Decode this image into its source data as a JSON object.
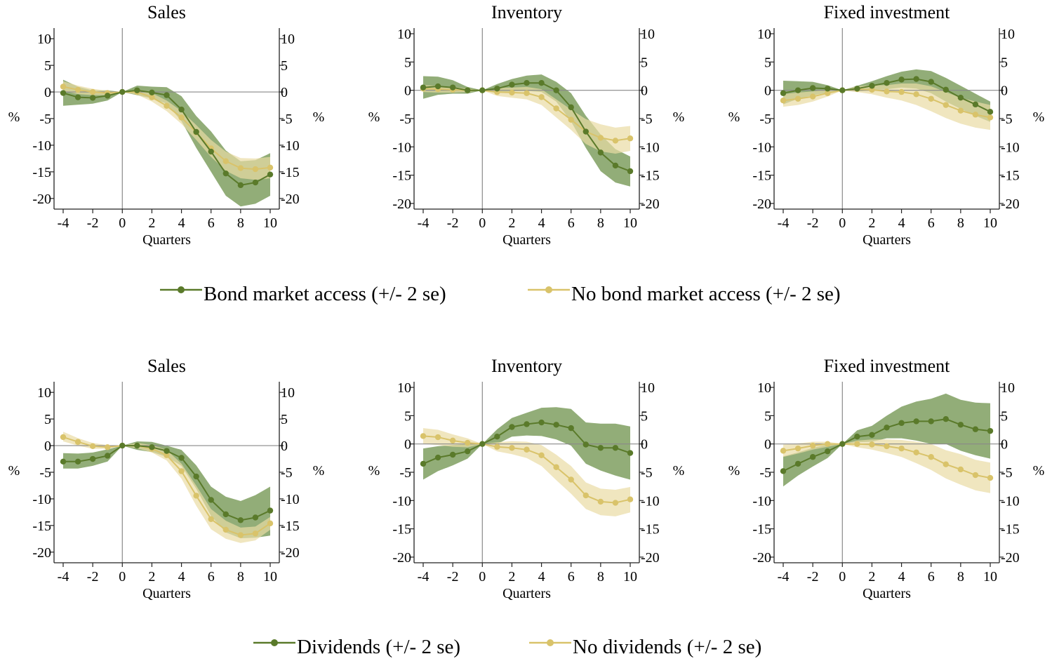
{
  "figure": {
    "background": "#ffffff",
    "colors": {
      "green": "#5a7a2a",
      "green_band": "#7f9f60",
      "yellow": "#d9c36a",
      "yellow_band": "#e9dca4",
      "axis": "#222222",
      "zero_line": "#888888"
    }
  },
  "legends": [
    {
      "items": [
        "Bond market access (+/- 2 se)",
        "No bond market access (+/- 2 se)"
      ]
    },
    {
      "items": [
        "Dividends (+/- 2 se)",
        "No dividends (+/- 2 se)"
      ]
    }
  ],
  "chart_data": [
    {
      "type": "line",
      "title": "Sales",
      "xlabel": "Quarters",
      "ylabel": "%",
      "ylabel_right": "%",
      "xlim": [
        -4,
        10
      ],
      "ylim": [
        -22,
        12
      ],
      "xticks": [
        -4,
        -2,
        0,
        2,
        4,
        6,
        8,
        10
      ],
      "yticks": [
        10,
        5,
        0,
        -5,
        -10,
        -15,
        -20
      ],
      "x": [
        -4,
        -3,
        -2,
        -1,
        0,
        1,
        2,
        3,
        4,
        5,
        6,
        7,
        8,
        9,
        10
      ],
      "series": [
        {
          "name": "Bond market access (+/- 2 se)",
          "color": "#5a7a2a",
          "band_color": "#7f9f60",
          "values": [
            -0.2,
            -1.0,
            -1.1,
            -0.7,
            0,
            0.3,
            -0.1,
            -0.6,
            -3.3,
            -7.5,
            -11.2,
            -15.3,
            -17.5,
            -17.0,
            -15.5
          ],
          "lower": [
            -2.6,
            -2.4,
            -2.2,
            -1.6,
            0,
            -0.6,
            -1.2,
            -2.2,
            -5.5,
            -10.5,
            -15.0,
            -19.5,
            -21.5,
            -21.0,
            -19.5
          ],
          "upper": [
            2.3,
            1.0,
            0.3,
            0.3,
            0,
            1.2,
            1.0,
            0.9,
            -0.8,
            -4.5,
            -7.4,
            -11.0,
            -13.0,
            -12.8,
            -11.5
          ]
        },
        {
          "name": "No bond market access (+/- 2 se)",
          "color": "#d9c36a",
          "band_color": "#e9dca4",
          "values": [
            1.0,
            0.4,
            0.0,
            -0.2,
            0,
            0.0,
            -1.0,
            -2.6,
            -4.8,
            -7.6,
            -10.6,
            -13.0,
            -14.3,
            -14.5,
            -14.2
          ],
          "lower": [
            0.2,
            -0.4,
            -0.6,
            -0.6,
            0,
            -0.5,
            -1.8,
            -3.6,
            -6.0,
            -9.0,
            -12.2,
            -14.8,
            -16.2,
            -16.5,
            -16.2
          ],
          "upper": [
            2.0,
            1.2,
            0.6,
            0.2,
            0,
            0.5,
            -0.2,
            -1.6,
            -3.6,
            -6.2,
            -9.0,
            -11.2,
            -12.4,
            -12.5,
            -12.2
          ]
        }
      ]
    },
    {
      "type": "line",
      "title": "Inventory",
      "xlabel": "Quarters",
      "ylabel": "%",
      "ylabel_right": "%",
      "xlim": [
        -4,
        10
      ],
      "ylim": [
        -21,
        11
      ],
      "xticks": [
        -4,
        -2,
        0,
        2,
        4,
        6,
        8,
        10
      ],
      "yticks": [
        10,
        5,
        0,
        -5,
        -10,
        -15,
        -20
      ],
      "x": [
        -4,
        -3,
        -2,
        -1,
        0,
        1,
        2,
        3,
        4,
        5,
        6,
        7,
        8,
        9,
        10
      ],
      "series": [
        {
          "name": "Bond market access (+/- 2 se)",
          "color": "#5a7a2a",
          "band_color": "#7f9f60",
          "values": [
            0.5,
            0.7,
            0.5,
            0.0,
            0,
            0.3,
            1.0,
            1.3,
            1.3,
            0.0,
            -3.0,
            -7.3,
            -11.0,
            -13.3,
            -14.3
          ],
          "lower": [
            -1.5,
            -0.8,
            -0.6,
            -0.6,
            0,
            -0.5,
            -0.2,
            -0.1,
            -0.3,
            -2.0,
            -5.5,
            -10.2,
            -14.3,
            -16.3,
            -17.0
          ],
          "upper": [
            2.5,
            2.4,
            1.8,
            0.6,
            0,
            1.1,
            2.0,
            2.6,
            2.8,
            1.5,
            -0.5,
            -4.5,
            -7.8,
            -10.4,
            -11.7
          ]
        },
        {
          "name": "No bond market access (+/- 2 se)",
          "color": "#d9c36a",
          "band_color": "#e9dca4",
          "values": [
            0.3,
            0.2,
            0.1,
            0.0,
            0,
            -0.3,
            -0.4,
            -0.5,
            -1.2,
            -3.2,
            -5.2,
            -7.3,
            -8.4,
            -8.9,
            -8.5
          ],
          "lower": [
            -0.3,
            -0.4,
            -0.4,
            -0.3,
            0,
            -1.0,
            -1.3,
            -1.6,
            -2.6,
            -4.8,
            -7.0,
            -9.5,
            -10.8,
            -11.2,
            -10.7
          ],
          "upper": [
            0.9,
            0.8,
            0.6,
            0.3,
            0,
            0.4,
            0.5,
            0.6,
            0.2,
            -1.6,
            -3.4,
            -5.1,
            -6.0,
            -6.6,
            -6.3
          ]
        }
      ]
    },
    {
      "type": "line",
      "title": "Fixed investment",
      "xlabel": "Quarters",
      "ylabel": "%",
      "ylabel_right": "%",
      "xlim": [
        -4,
        10
      ],
      "ylim": [
        -21,
        11
      ],
      "xticks": [
        -4,
        -2,
        0,
        2,
        4,
        6,
        8,
        10
      ],
      "yticks": [
        10,
        5,
        0,
        -5,
        -10,
        -15,
        -20
      ],
      "x": [
        -4,
        -3,
        -2,
        -1,
        0,
        1,
        2,
        3,
        4,
        5,
        6,
        7,
        8,
        9,
        10
      ],
      "series": [
        {
          "name": "Bond market access (+/- 2 se)",
          "color": "#5a7a2a",
          "band_color": "#7f9f60",
          "values": [
            -0.5,
            0.0,
            0.4,
            0.3,
            0,
            0.3,
            0.8,
            1.3,
            1.9,
            2.0,
            1.5,
            0.1,
            -1.3,
            -2.5,
            -3.8
          ],
          "lower": [
            -2.5,
            -1.5,
            -0.9,
            -0.4,
            0,
            -0.2,
            0.0,
            0.2,
            0.5,
            0.3,
            -0.5,
            -2.0,
            -3.3,
            -4.5,
            -5.6
          ],
          "upper": [
            1.7,
            1.6,
            1.5,
            0.9,
            0,
            0.8,
            1.6,
            2.5,
            3.3,
            3.7,
            3.4,
            2.2,
            0.8,
            -0.6,
            -2.0
          ]
        },
        {
          "name": "No bond market access (+/- 2 se)",
          "color": "#d9c36a",
          "band_color": "#e9dca4",
          "values": [
            -1.8,
            -1.5,
            -1.1,
            -0.5,
            0,
            0.2,
            0.1,
            -0.2,
            -0.3,
            -0.7,
            -1.5,
            -2.6,
            -3.6,
            -4.3,
            -4.8
          ],
          "lower": [
            -2.9,
            -2.6,
            -2.0,
            -1.1,
            0,
            -0.3,
            -0.7,
            -1.3,
            -1.8,
            -2.6,
            -3.7,
            -4.9,
            -5.9,
            -6.6,
            -7.0
          ],
          "upper": [
            -0.7,
            -0.4,
            -0.2,
            0.1,
            0,
            0.7,
            0.9,
            0.9,
            1.2,
            1.2,
            0.7,
            -0.3,
            -1.3,
            -2.0,
            -2.6
          ]
        }
      ]
    },
    {
      "type": "line",
      "title": "Sales",
      "xlabel": "Quarters",
      "ylabel": "%",
      "ylabel_right": "%",
      "xlim": [
        -4,
        10
      ],
      "ylim": [
        -22,
        12
      ],
      "xticks": [
        -4,
        -2,
        0,
        2,
        4,
        6,
        8,
        10
      ],
      "yticks": [
        10,
        5,
        0,
        -5,
        -10,
        -15,
        -20
      ],
      "x": [
        -4,
        -3,
        -2,
        -1,
        0,
        1,
        2,
        3,
        4,
        5,
        6,
        7,
        8,
        9,
        10
      ],
      "series": [
        {
          "name": "Dividends (+/- 2 se)",
          "color": "#5a7a2a",
          "band_color": "#7f9f60",
          "values": [
            -3.0,
            -3.0,
            -2.5,
            -1.9,
            0,
            0.0,
            -0.3,
            -1.0,
            -2.3,
            -5.8,
            -10.2,
            -12.9,
            -14.0,
            -13.5,
            -12.2
          ],
          "lower": [
            -4.3,
            -4.3,
            -3.8,
            -3.0,
            0,
            -0.8,
            -1.2,
            -2.1,
            -3.8,
            -8.1,
            -13.2,
            -16.3,
            -17.4,
            -17.3,
            -16.9
          ],
          "upper": [
            -1.4,
            -1.5,
            -1.3,
            -0.7,
            0,
            0.8,
            0.7,
            0.0,
            -0.8,
            -3.7,
            -7.7,
            -9.6,
            -10.4,
            -9.3,
            -7.7
          ]
        },
        {
          "name": "No dividends (+/- 2 se)",
          "color": "#d9c36a",
          "band_color": "#e9dca4",
          "values": [
            1.6,
            0.7,
            -0.1,
            -0.3,
            0,
            0.0,
            -0.6,
            -1.8,
            -4.8,
            -9.4,
            -13.8,
            -15.8,
            -16.8,
            -16.5,
            -14.6
          ],
          "lower": [
            0.8,
            0.0,
            -0.6,
            -0.6,
            0,
            -0.5,
            -1.3,
            -2.8,
            -6.2,
            -11.3,
            -15.7,
            -17.5,
            -18.3,
            -17.8,
            -15.8
          ],
          "upper": [
            2.6,
            1.4,
            0.5,
            0.1,
            0,
            0.5,
            0.1,
            -0.8,
            -3.4,
            -7.5,
            -11.9,
            -14.1,
            -15.4,
            -15.2,
            -13.4
          ]
        }
      ]
    },
    {
      "type": "line",
      "title": "Inventory",
      "xlabel": "Quarters",
      "ylabel": "%",
      "ylabel_right": "%",
      "xlim": [
        -4,
        10
      ],
      "ylim": [
        -21,
        11
      ],
      "xticks": [
        -4,
        -2,
        0,
        2,
        4,
        6,
        8,
        10
      ],
      "yticks": [
        10,
        5,
        0,
        -5,
        -10,
        -15,
        -20
      ],
      "x": [
        -4,
        -3,
        -2,
        -1,
        0,
        1,
        2,
        3,
        4,
        5,
        6,
        7,
        8,
        9,
        10
      ],
      "series": [
        {
          "name": "Dividends (+/- 2 se)",
          "color": "#5a7a2a",
          "band_color": "#7f9f60",
          "values": [
            -3.5,
            -2.4,
            -1.9,
            -1.3,
            0,
            1.3,
            3.0,
            3.5,
            3.8,
            3.4,
            2.8,
            -0.1,
            -0.7,
            -0.7,
            -1.6
          ],
          "lower": [
            -6.3,
            -4.8,
            -3.8,
            -2.6,
            0,
            0.0,
            1.3,
            1.5,
            1.4,
            0.8,
            -0.3,
            -3.5,
            -4.7,
            -5.6,
            -6.3
          ],
          "upper": [
            -0.8,
            -0.4,
            -0.2,
            0.0,
            0,
            2.6,
            4.6,
            5.5,
            6.4,
            6.5,
            6.2,
            3.8,
            3.6,
            3.6,
            3.1
          ]
        },
        {
          "name": "No dividends (+/- 2 se)",
          "color": "#d9c36a",
          "band_color": "#e9dca4",
          "values": [
            1.4,
            1.2,
            0.6,
            0.2,
            0,
            -0.5,
            -0.7,
            -1.0,
            -2.0,
            -4.1,
            -6.3,
            -9.1,
            -10.2,
            -10.4,
            -9.8
          ],
          "lower": [
            0.0,
            -0.2,
            -0.5,
            -0.6,
            0,
            -1.3,
            -1.8,
            -2.5,
            -3.9,
            -6.4,
            -8.8,
            -11.5,
            -12.6,
            -12.8,
            -12.1
          ],
          "upper": [
            2.8,
            2.5,
            1.7,
            1.0,
            0,
            0.3,
            0.5,
            0.4,
            -0.2,
            -1.9,
            -3.9,
            -6.8,
            -7.9,
            -8.1,
            -7.6
          ]
        }
      ]
    },
    {
      "type": "line",
      "title": "Fixed investment",
      "xlabel": "Quarters",
      "ylabel": "%",
      "ylabel_right": "%",
      "xlim": [
        -4,
        10
      ],
      "ylim": [
        -21,
        11
      ],
      "xticks": [
        -4,
        -2,
        0,
        2,
        4,
        6,
        8,
        10
      ],
      "yticks": [
        10,
        5,
        0,
        -5,
        -10,
        -15,
        -20
      ],
      "x": [
        -4,
        -3,
        -2,
        -1,
        0,
        1,
        2,
        3,
        4,
        5,
        6,
        7,
        8,
        9,
        10
      ],
      "series": [
        {
          "name": "Dividends (+/- 2 se)",
          "color": "#5a7a2a",
          "band_color": "#7f9f60",
          "values": [
            -4.8,
            -3.5,
            -2.3,
            -1.3,
            0,
            1.3,
            1.6,
            2.9,
            3.7,
            4.0,
            4.0,
            4.4,
            3.4,
            2.6,
            2.3
          ],
          "lower": [
            -7.5,
            -5.6,
            -4.0,
            -2.5,
            0,
            0.3,
            0.4,
            1.0,
            1.0,
            0.6,
            0.0,
            0.0,
            -1.2,
            -2.0,
            -2.6
          ],
          "upper": [
            -2.2,
            -1.5,
            -0.7,
            -0.1,
            0,
            2.4,
            3.2,
            5.0,
            6.6,
            7.5,
            8.0,
            8.9,
            7.8,
            7.3,
            7.2
          ]
        },
        {
          "name": "No dividends (+/- 2 se)",
          "color": "#d9c36a",
          "band_color": "#e9dca4",
          "values": [
            -1.2,
            -0.8,
            -0.3,
            0.0,
            0,
            0.0,
            -0.1,
            -0.4,
            -0.8,
            -1.5,
            -2.3,
            -3.6,
            -4.5,
            -5.5,
            -6.0
          ],
          "lower": [
            -2.3,
            -1.7,
            -1.0,
            -0.5,
            0,
            -0.6,
            -1.0,
            -1.6,
            -2.3,
            -3.4,
            -4.6,
            -6.1,
            -7.2,
            -8.2,
            -8.7
          ],
          "upper": [
            -0.1,
            0.1,
            0.4,
            0.4,
            0,
            0.6,
            0.8,
            0.8,
            0.7,
            0.4,
            0.0,
            -1.1,
            -1.8,
            -2.8,
            -3.3
          ]
        }
      ]
    }
  ]
}
